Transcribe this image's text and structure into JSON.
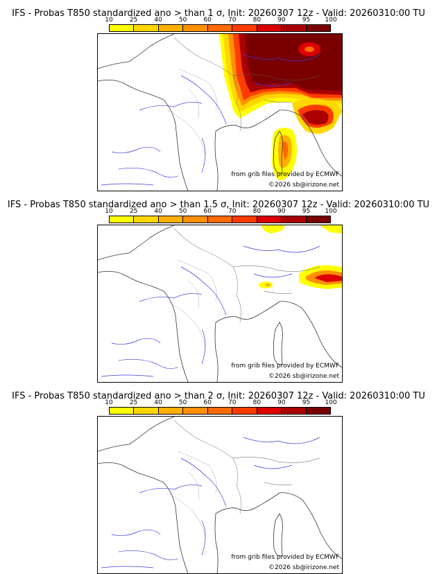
{
  "legend": {
    "ticks": [
      "10",
      "25",
      "40",
      "50",
      "60",
      "70",
      "80",
      "90",
      "95",
      "100"
    ],
    "colors": [
      "#ffff00",
      "#ffd700",
      "#ffb000",
      "#ff9000",
      "#ff6a00",
      "#ff3c00",
      "#dd0000",
      "#aa0000",
      "#7a0000"
    ]
  },
  "credits": {
    "source": "from grib files provided by ECMWF",
    "copyright": "©2026 sb@irizone.net"
  },
  "panels": [
    {
      "title": "IFS - Probas T850  standardized ano > than 1 σ, Init: 20260307 12z - Valid: 20260310:00 TU"
    },
    {
      "title": "IFS - Probas T850  standardized ano > than 1.5 σ, Init: 20260307 12z - Valid: 20260310:00 TU"
    },
    {
      "title": "IFS - Probas T850  standardized ano > than 2 σ, Init: 20260307 12z - Valid: 20260310:00 TU"
    }
  ]
}
